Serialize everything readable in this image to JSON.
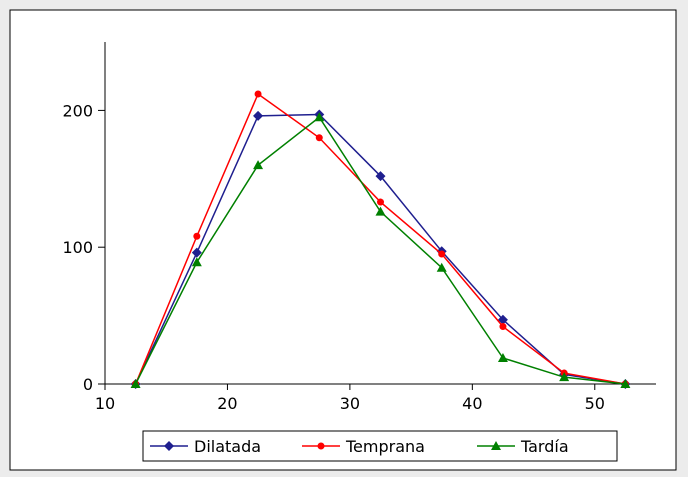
{
  "chart_data": {
    "type": "line",
    "title": "",
    "xlabel": "",
    "ylabel": "",
    "xlim": [
      10,
      55
    ],
    "ylim": [
      0,
      250
    ],
    "x_ticks": [
      10,
      20,
      30,
      40,
      50
    ],
    "y_ticks": [
      0,
      100,
      200
    ],
    "x_tick_labels": [
      "10",
      "20",
      "30",
      "40",
      "50"
    ],
    "y_tick_labels": [
      "0",
      "100",
      "200"
    ],
    "grid": false,
    "legend_position": "bottom",
    "x": [
      12.5,
      17.5,
      22.5,
      27.5,
      32.5,
      37.5,
      42.5,
      47.5,
      52.5
    ],
    "series": [
      {
        "name": "Dilatada",
        "color": "#1f1f8f",
        "marker": "diamond",
        "values": [
          0,
          96,
          196,
          197,
          152,
          97,
          47,
          7,
          0
        ]
      },
      {
        "name": "Temprana",
        "color": "#ff0000",
        "marker": "circle",
        "values": [
          0,
          108,
          212,
          180,
          133,
          95,
          42,
          8,
          0
        ]
      },
      {
        "name": "Tardía",
        "color": "#008000",
        "marker": "triangle",
        "values": [
          0,
          89,
          160,
          195,
          126,
          85,
          19,
          5,
          0
        ]
      }
    ]
  }
}
